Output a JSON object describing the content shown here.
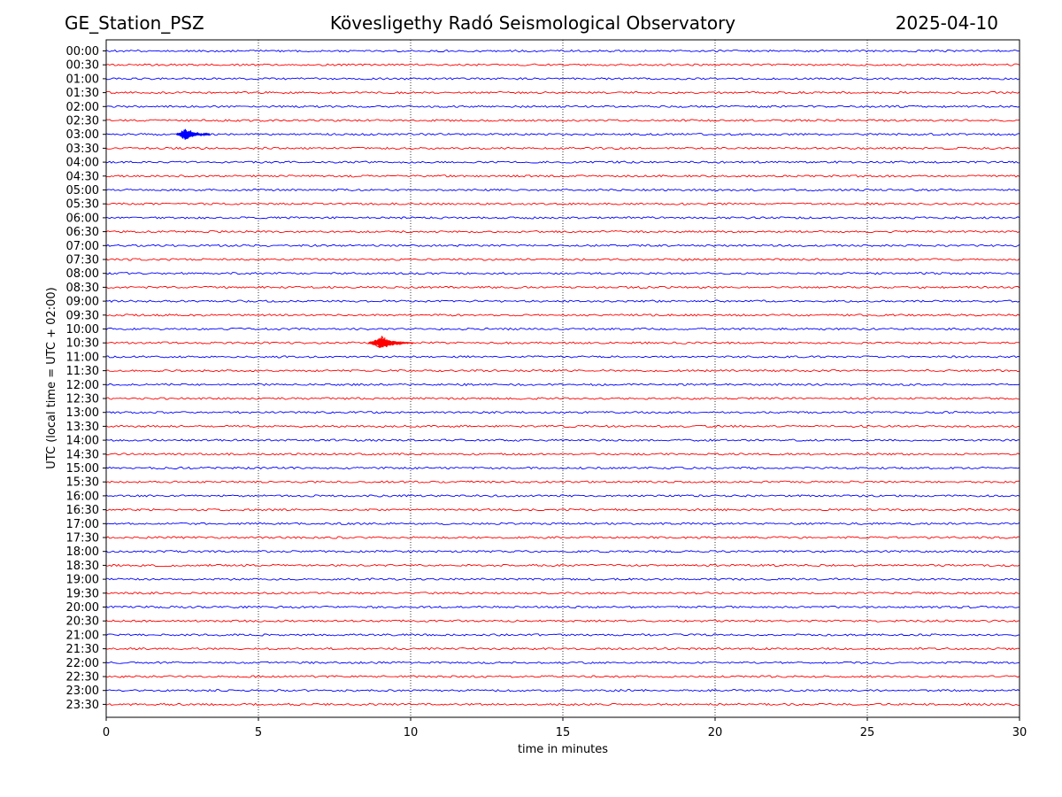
{
  "header": {
    "station": "GE_Station_PSZ",
    "observatory": "Kövesligethy Radó Seismological Observatory",
    "date": "2025-04-10"
  },
  "chart_data": {
    "type": "line",
    "title": "Kövesligethy Radó Seismological Observatory",
    "xlabel": "time in minutes",
    "ylabel": "UTC (local time = UTC + 02:00)",
    "xlim": [
      0,
      30
    ],
    "x_ticks": [
      "0",
      "5",
      "10",
      "15",
      "20",
      "25",
      "30"
    ],
    "grid": "vertical dotted lines at each x tick",
    "trace_colors": [
      "#0000ff",
      "#ff0000"
    ],
    "traces": [
      "00:00",
      "00:30",
      "01:00",
      "01:30",
      "02:00",
      "02:30",
      "03:00",
      "03:30",
      "04:00",
      "04:30",
      "05:00",
      "05:30",
      "06:00",
      "06:30",
      "07:00",
      "07:30",
      "08:00",
      "08:30",
      "09:00",
      "09:30",
      "10:00",
      "10:30",
      "11:00",
      "11:30",
      "12:00",
      "12:30",
      "13:00",
      "13:30",
      "14:00",
      "14:30",
      "15:00",
      "15:30",
      "16:00",
      "16:30",
      "17:00",
      "17:30",
      "18:00",
      "18:30",
      "19:00",
      "19:30",
      "20:00",
      "20:30",
      "21:00",
      "21:30",
      "22:00",
      "22:30",
      "23:00",
      "23:30"
    ],
    "events": [
      {
        "trace": "03:00",
        "start_min": 2.3,
        "peak_min": 2.6,
        "end_min": 3.4,
        "relative_amplitude": 0.45
      },
      {
        "trace": "10:30",
        "start_min": 8.6,
        "peak_min": 9.1,
        "end_min": 10.1,
        "relative_amplitude": 0.5
      }
    ]
  }
}
